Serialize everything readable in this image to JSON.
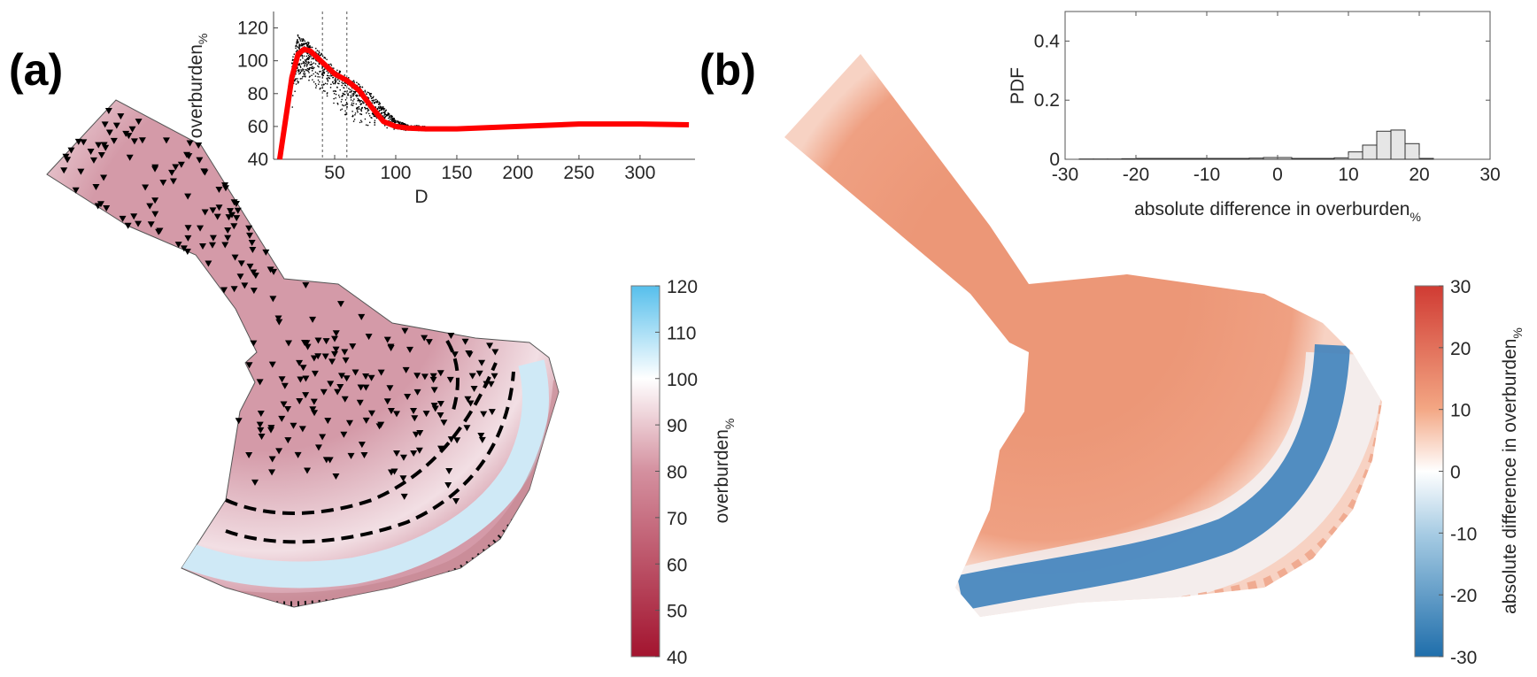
{
  "panels": {
    "a": "(a)",
    "b": "(b)"
  },
  "colors": {
    "red_curve": "#ff0000",
    "scatter": "#000000",
    "hist_fill": "#e6e6e6",
    "map_a_base": "#d49aa8",
    "map_a_front": "#bfe3f5",
    "map_b_base": "#ef9f7e",
    "map_b_front": "#3f82bd"
  },
  "chart_data": [
    {
      "type": "line",
      "panel": "a-inset",
      "xlabel": "D",
      "ylabel": "overburden",
      "ylabel_sub": "%",
      "xlim": [
        0,
        345
      ],
      "ylim": [
        40,
        130
      ],
      "xticks": [
        "50",
        "100",
        "150",
        "200",
        "250",
        "300"
      ],
      "yticks": [
        "40",
        "60",
        "80",
        "100",
        "120"
      ],
      "vlines_dashed": [
        40,
        60
      ],
      "series": [
        {
          "kind": "line",
          "color": "#ff0000",
          "x": [
            5,
            10,
            15,
            20,
            25,
            30,
            40,
            50,
            60,
            70,
            80,
            90,
            100,
            110,
            125,
            150,
            200,
            250,
            300,
            340
          ],
          "y": [
            40,
            65,
            90,
            104,
            107,
            106,
            99,
            92,
            88,
            82,
            72,
            63,
            60,
            59,
            58.5,
            58.5,
            60,
            61.5,
            61.5,
            61
          ]
        },
        {
          "kind": "scatter",
          "color": "#000000",
          "x": [
            15,
            20,
            25,
            30,
            40,
            50,
            60,
            70,
            80,
            90,
            100,
            110,
            125
          ],
          "y_lower": [
            70,
            85,
            88,
            86,
            80,
            72,
            64,
            61,
            60,
            59,
            58,
            57,
            57
          ],
          "y_upper": [
            100,
            116,
            113,
            111,
            104,
            96,
            91,
            86,
            80,
            72,
            64,
            61,
            60
          ]
        }
      ],
      "grid": false
    },
    {
      "type": "bar",
      "panel": "b-inset",
      "xlabel": "absolute difference in overburden",
      "xlabel_sub": "%",
      "ylabel": "PDF",
      "xlim": [
        -30,
        30
      ],
      "ylim": [
        0,
        0.5
      ],
      "xticks": [
        "-30",
        "-20",
        "-10",
        "0",
        "10",
        "20",
        "30"
      ],
      "yticks": [
        "0",
        "0.2",
        "0.4"
      ],
      "bin_edges_start": -30,
      "bin_width": 2,
      "values": [
        0,
        0.001,
        0.001,
        0.001,
        0.002,
        0.003,
        0.003,
        0.003,
        0.003,
        0.003,
        0.003,
        0.003,
        0.003,
        0.004,
        0.006,
        0.006,
        0.003,
        0.003,
        0.003,
        0.005,
        0.025,
        0.048,
        0.095,
        0.099,
        0.053,
        0.003,
        0,
        0,
        0,
        0
      ],
      "grid": false
    }
  ],
  "colorbar_a": {
    "label": "overburden",
    "label_sub": "%",
    "ticks": [
      "40",
      "50",
      "60",
      "70",
      "80",
      "90",
      "100",
      "110",
      "120"
    ],
    "range": [
      40,
      120
    ],
    "colors": [
      "#a3142f",
      "#d4909f",
      "#ffffff",
      "#56bfec"
    ]
  },
  "colorbar_b": {
    "label": "absolute difference in overburden",
    "label_sub": "%",
    "ticks": [
      "-30",
      "-20",
      "-10",
      "0",
      "10",
      "20",
      "30"
    ],
    "range": [
      -30,
      30
    ],
    "colors": [
      "#1f6eab",
      "#a6cbe3",
      "#ffffff",
      "#f3a683",
      "#d03b33"
    ]
  }
}
